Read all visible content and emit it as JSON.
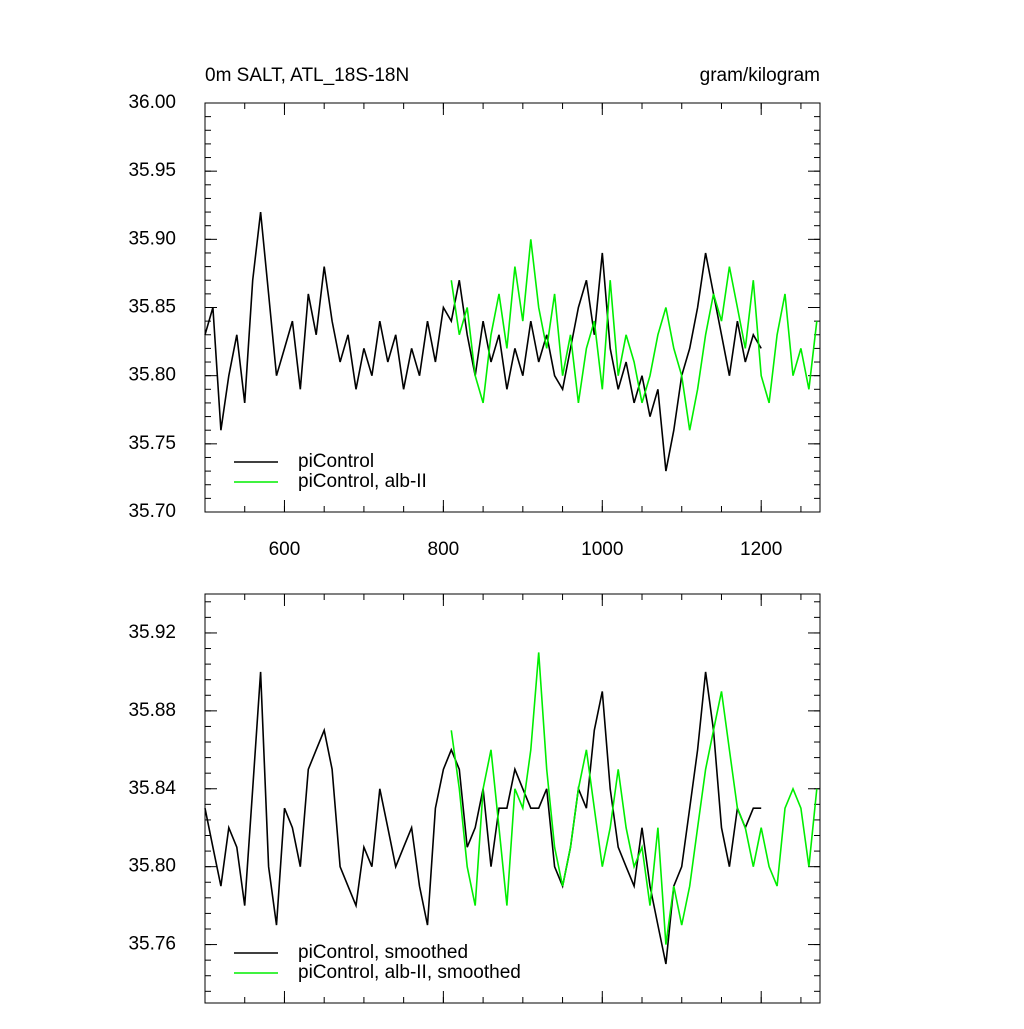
{
  "chart_data": [
    {
      "type": "line",
      "title": "0m SALT, ATL_18S-18N",
      "units": "gram/kilogram",
      "x": [
        500,
        510,
        520,
        530,
        540,
        550,
        560,
        570,
        580,
        590,
        600,
        610,
        620,
        630,
        640,
        650,
        660,
        670,
        680,
        690,
        700,
        710,
        720,
        730,
        740,
        750,
        760,
        770,
        780,
        790,
        800,
        810,
        820,
        830,
        840,
        850,
        860,
        870,
        880,
        890,
        900,
        910,
        920,
        930,
        940,
        950,
        960,
        970,
        980,
        990,
        1000,
        1010,
        1020,
        1030,
        1040,
        1050,
        1060,
        1070,
        1080,
        1090,
        1100,
        1110,
        1120,
        1130,
        1140,
        1150,
        1160,
        1170,
        1180,
        1190,
        1200,
        1210,
        1220,
        1230,
        1240,
        1250,
        1260,
        1270
      ],
      "series": [
        {
          "name": "piControl",
          "color": "#000000",
          "values": [
            35.83,
            35.85,
            35.76,
            35.8,
            35.83,
            35.78,
            35.87,
            35.92,
            35.86,
            35.8,
            35.82,
            35.84,
            35.79,
            35.86,
            35.83,
            35.88,
            35.84,
            35.81,
            35.83,
            35.79,
            35.82,
            35.8,
            35.84,
            35.81,
            35.83,
            35.79,
            35.82,
            35.8,
            35.84,
            35.81,
            35.85,
            35.84,
            35.87,
            35.83,
            35.8,
            35.84,
            35.81,
            35.83,
            35.79,
            35.82,
            35.8,
            35.84,
            35.81,
            35.83,
            35.8,
            35.79,
            35.82,
            35.85,
            35.87,
            35.83,
            35.89,
            35.82,
            35.79,
            35.81,
            35.78,
            35.8,
            35.77,
            35.79,
            35.73,
            35.76,
            35.8,
            35.82,
            35.85,
            35.89,
            35.86,
            35.83,
            35.8,
            35.84,
            35.81,
            35.83,
            35.82,
            null,
            null,
            null,
            null,
            null,
            null,
            null
          ]
        },
        {
          "name": "piControl, alb-II",
          "color": "#00ee00",
          "values": [
            null,
            null,
            null,
            null,
            null,
            null,
            null,
            null,
            null,
            null,
            null,
            null,
            null,
            null,
            null,
            null,
            null,
            null,
            null,
            null,
            null,
            null,
            null,
            null,
            null,
            null,
            null,
            null,
            null,
            null,
            null,
            35.87,
            35.83,
            35.85,
            35.8,
            35.78,
            35.83,
            35.86,
            35.82,
            35.88,
            35.84,
            35.9,
            35.85,
            35.82,
            35.86,
            35.8,
            35.83,
            35.78,
            35.82,
            35.84,
            35.79,
            35.87,
            35.8,
            35.83,
            35.81,
            35.78,
            35.8,
            35.83,
            35.85,
            35.82,
            35.8,
            35.76,
            35.79,
            35.83,
            35.86,
            35.84,
            35.88,
            35.85,
            35.82,
            35.87,
            35.8,
            35.78,
            35.83,
            35.86,
            35.8,
            35.82,
            35.79,
            35.84
          ]
        }
      ],
      "xlim": [
        500,
        1274
      ],
      "xticks": [
        600,
        800,
        1000,
        1200
      ],
      "xtick_labels": true,
      "ylim": [
        35.7,
        36.0
      ],
      "yticks": [
        {
          "value": 35.7,
          "label": "35.70"
        },
        35.75,
        {
          "value": 35.8,
          "label": "35.80"
        },
        35.85,
        {
          "value": 35.9,
          "label": "35.90"
        },
        35.95,
        {
          "value": 36.0,
          "label": "36.00"
        }
      ],
      "legend": "lower left"
    },
    {
      "type": "line",
      "x": [
        500,
        510,
        520,
        530,
        540,
        550,
        560,
        570,
        580,
        590,
        600,
        610,
        620,
        630,
        640,
        650,
        660,
        670,
        680,
        690,
        700,
        710,
        720,
        730,
        740,
        750,
        760,
        770,
        780,
        790,
        800,
        810,
        820,
        830,
        840,
        850,
        860,
        870,
        880,
        890,
        900,
        910,
        920,
        930,
        940,
        950,
        960,
        970,
        980,
        990,
        1000,
        1010,
        1020,
        1030,
        1040,
        1050,
        1060,
        1070,
        1080,
        1090,
        1100,
        1110,
        1120,
        1130,
        1140,
        1150,
        1160,
        1170,
        1180,
        1190,
        1200,
        1210,
        1220,
        1230,
        1240,
        1250,
        1260,
        1270
      ],
      "series": [
        {
          "name": "piControl, smoothed",
          "color": "#000000",
          "values": [
            35.83,
            35.81,
            35.79,
            35.82,
            35.81,
            35.78,
            35.84,
            35.9,
            35.8,
            35.77,
            35.83,
            35.82,
            35.8,
            35.85,
            35.86,
            35.87,
            35.85,
            35.8,
            35.79,
            35.78,
            35.81,
            35.8,
            35.84,
            35.82,
            35.8,
            35.81,
            35.82,
            35.79,
            35.77,
            35.83,
            35.85,
            35.86,
            35.85,
            35.81,
            35.82,
            35.84,
            35.8,
            35.83,
            35.83,
            35.85,
            35.84,
            35.83,
            35.83,
            35.84,
            35.8,
            35.79,
            35.81,
            35.84,
            35.83,
            35.87,
            35.89,
            35.84,
            35.81,
            35.8,
            35.79,
            35.82,
            35.79,
            35.77,
            35.75,
            35.79,
            35.8,
            35.83,
            35.86,
            35.9,
            35.87,
            35.82,
            35.8,
            35.83,
            35.82,
            35.83,
            35.83,
            null,
            null,
            null,
            null,
            null,
            null,
            null
          ]
        },
        {
          "name": "piControl, alb-II, smoothed",
          "color": "#00ee00",
          "values": [
            null,
            null,
            null,
            null,
            null,
            null,
            null,
            null,
            null,
            null,
            null,
            null,
            null,
            null,
            null,
            null,
            null,
            null,
            null,
            null,
            null,
            null,
            null,
            null,
            null,
            null,
            null,
            null,
            null,
            null,
            null,
            35.87,
            35.84,
            35.8,
            35.78,
            35.84,
            35.86,
            35.82,
            35.78,
            35.84,
            35.83,
            35.86,
            35.91,
            35.85,
            35.81,
            35.79,
            35.81,
            35.84,
            35.86,
            35.83,
            35.8,
            35.82,
            35.85,
            35.82,
            35.8,
            35.81,
            35.78,
            35.82,
            35.76,
            35.79,
            35.77,
            35.79,
            35.82,
            35.85,
            35.87,
            35.89,
            35.86,
            35.83,
            35.82,
            35.8,
            35.82,
            35.8,
            35.79,
            35.83,
            35.84,
            35.83,
            35.8,
            35.84
          ]
        }
      ],
      "xlim": [
        500,
        1274
      ],
      "xticks": [
        600,
        800,
        1000,
        1200
      ],
      "xtick_labels": false,
      "ylim": [
        35.73,
        35.94
      ],
      "yticks": [
        35.76,
        {
          "value": 35.8,
          "label": "35.80"
        },
        35.84,
        35.88,
        35.92
      ],
      "legend": "lower left"
    }
  ]
}
